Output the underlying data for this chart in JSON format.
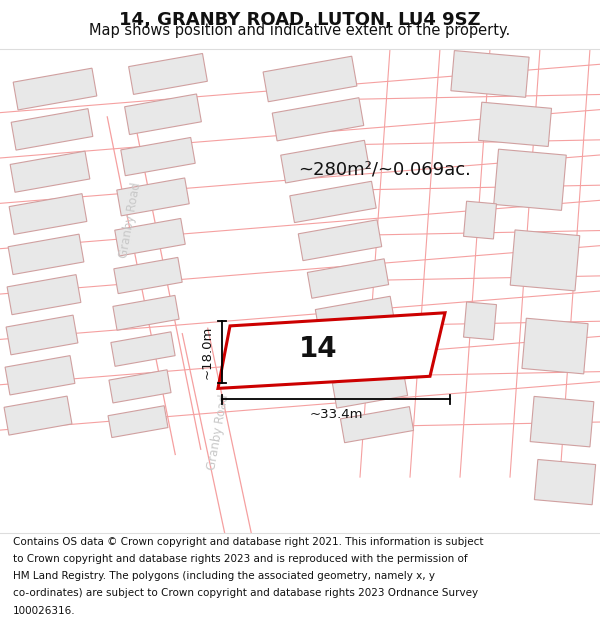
{
  "title": "14, GRANBY ROAD, LUTON, LU4 9SZ",
  "subtitle": "Map shows position and indicative extent of the property.",
  "area_label": "~280m²/~0.069ac.",
  "width_label": "~33.4m",
  "height_label": "~18.0m",
  "property_number": "14",
  "map_bg": "#ffffff",
  "road_line_color": "#f5a0a0",
  "building_fill": "#e8e8e8",
  "building_stroke": "#d0a0a0",
  "property_fill": "#ffffff",
  "property_stroke": "#cc0000",
  "road_label_color": "#c8c8c8",
  "title_fontsize": 13,
  "subtitle_fontsize": 10.5,
  "footer_fontsize": 7.5,
  "footer_lines": [
    "Contains OS data © Crown copyright and database right 2021. This information is subject",
    "to Crown copyright and database rights 2023 and is reproduced with the permission of",
    "HM Land Registry. The polygons (including the associated geometry, namely x, y",
    "co-ordinates) are subject to Crown copyright and database rights 2023 Ordnance Survey",
    "100026316."
  ]
}
